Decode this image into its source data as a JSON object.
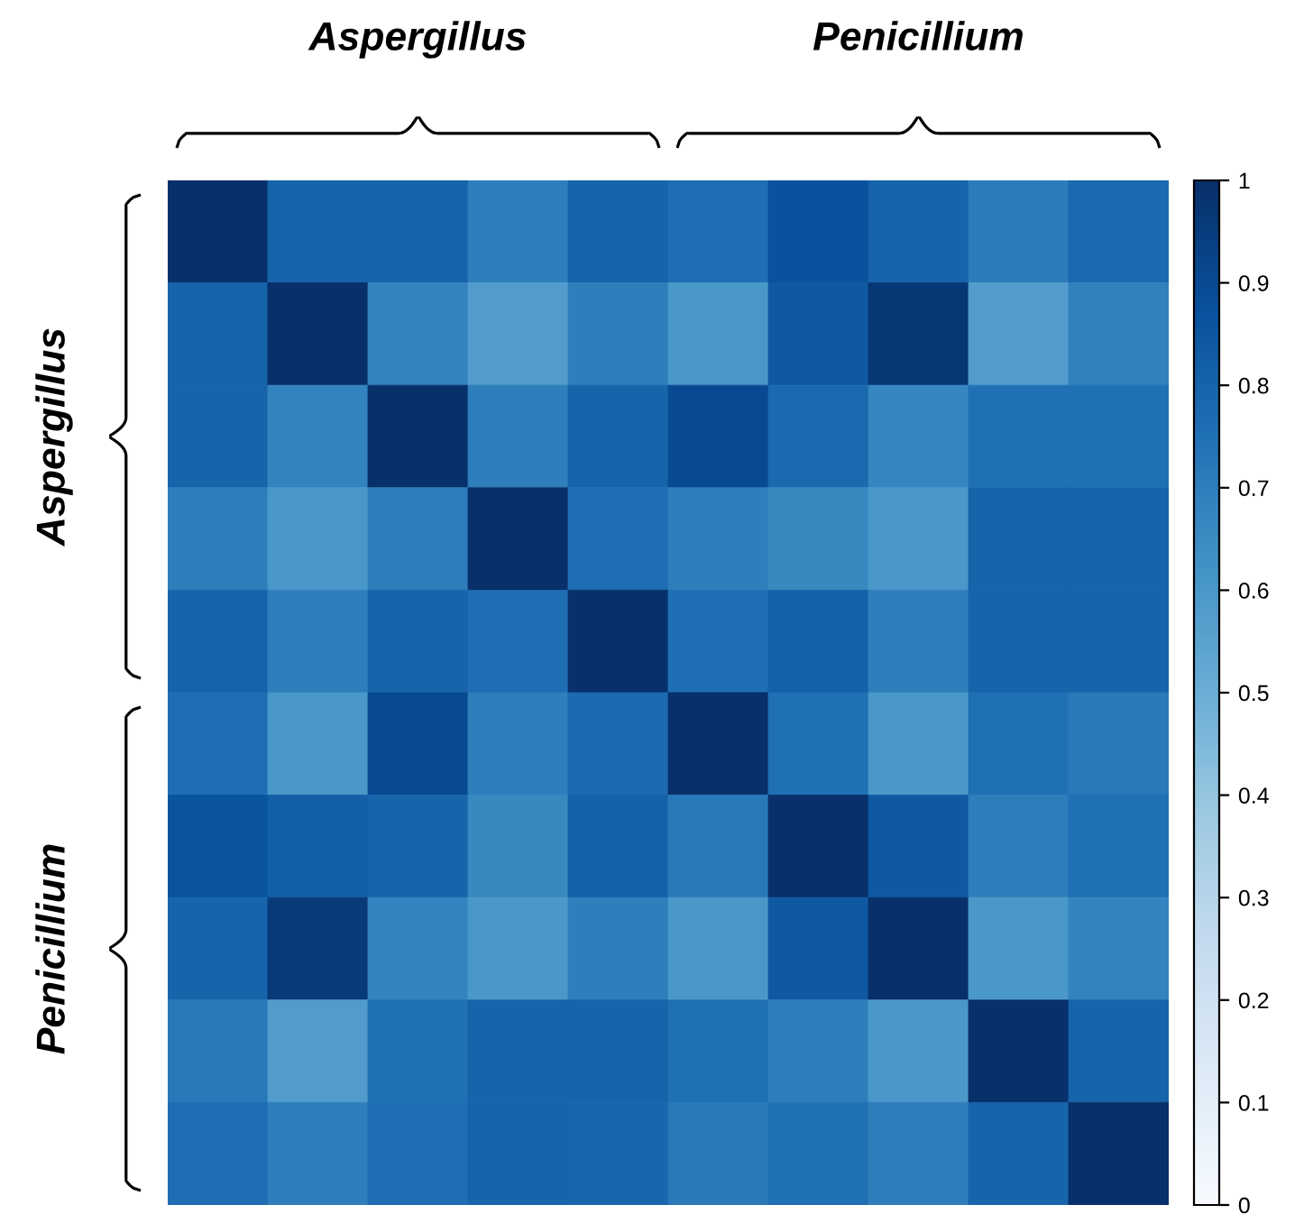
{
  "chart_data": {
    "type": "heatmap",
    "categories": [
      null,
      null,
      null,
      null,
      null,
      null,
      null,
      null,
      null,
      null
    ],
    "y_categories": [
      null,
      null,
      null,
      null,
      null,
      null,
      null,
      null,
      null,
      null
    ],
    "cells": [
      [
        1,
        0.8,
        0.8,
        0.7,
        0.8,
        0.76,
        0.87,
        0.8,
        0.71,
        0.78
      ],
      [
        0.8,
        1,
        0.68,
        0.58,
        0.7,
        0.6,
        0.84,
        0.97,
        0.58,
        0.69
      ],
      [
        0.8,
        0.68,
        1,
        0.7,
        0.8,
        0.9,
        0.78,
        0.67,
        0.75,
        0.75
      ],
      [
        0.7,
        0.6,
        0.7,
        1,
        0.76,
        0.7,
        0.66,
        0.6,
        0.8,
        0.8
      ],
      [
        0.8,
        0.7,
        0.8,
        0.76,
        1,
        0.76,
        0.81,
        0.7,
        0.8,
        0.8
      ],
      [
        0.76,
        0.6,
        0.9,
        0.7,
        0.77,
        1,
        0.75,
        0.6,
        0.75,
        0.72
      ],
      [
        0.86,
        0.82,
        0.8,
        0.66,
        0.81,
        0.72,
        1,
        0.84,
        0.7,
        0.75
      ],
      [
        0.8,
        0.96,
        0.68,
        0.6,
        0.7,
        0.6,
        0.84,
        1,
        0.6,
        0.68
      ],
      [
        0.72,
        0.58,
        0.75,
        0.8,
        0.8,
        0.75,
        0.7,
        0.6,
        1,
        0.8
      ],
      [
        0.76,
        0.7,
        0.76,
        0.8,
        0.79,
        0.72,
        0.75,
        0.7,
        0.8,
        1
      ]
    ],
    "clim": [
      0,
      1
    ],
    "cticks": [
      0,
      0.1,
      0.2,
      0.3,
      0.4,
      0.5,
      0.6,
      0.7,
      0.8,
      0.9,
      1
    ],
    "annotations": [
      "Aspergillus",
      "Penicillium",
      "Aspergillus",
      "Penicillium"
    ]
  }
}
